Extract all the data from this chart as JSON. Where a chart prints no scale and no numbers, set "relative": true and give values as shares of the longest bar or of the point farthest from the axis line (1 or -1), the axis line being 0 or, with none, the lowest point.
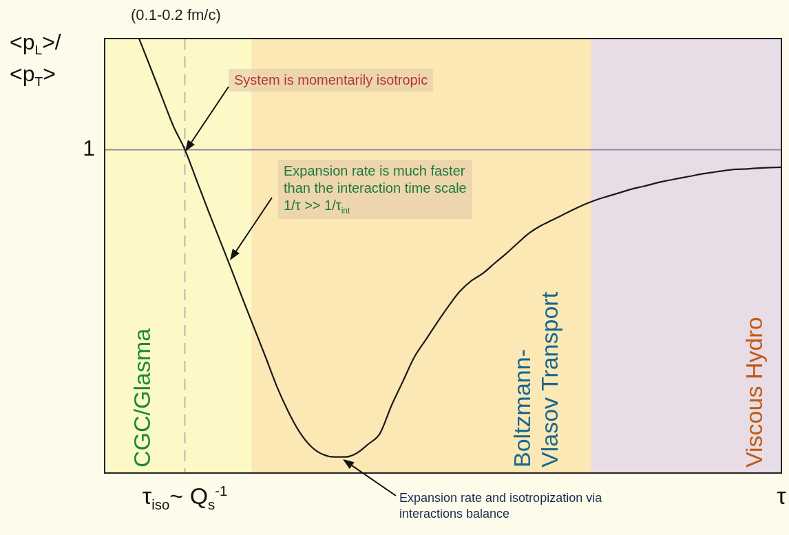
{
  "chart_data": {
    "type": "line",
    "ylabel": "<p$_{L}$>/<p$_{T}$>",
    "relative": true,
    "legend": false,
    "marker": "none",
    "line_style": "solid",
    "categories": [
      null,
      null,
      null,
      null,
      null,
      null,
      null,
      "τ$_{iso}$~ Q$_{s}$$^{-1}$",
      null,
      null,
      null,
      null,
      null,
      null,
      null,
      null,
      null,
      null,
      null,
      null,
      null,
      null,
      null,
      null,
      null,
      null,
      null,
      null,
      null,
      null,
      null,
      null,
      null,
      null,
      null,
      null,
      null,
      null,
      null,
      null,
      null,
      null,
      null,
      null,
      null,
      null,
      null,
      null,
      null,
      null,
      null,
      null,
      null,
      null,
      null,
      null,
      null,
      null,
      null,
      "τ"
    ],
    "series": [
      {
        "color": "#1a1a1a",
        "values": [
          null,
          null,
          null,
          1.0,
          0.933,
          0.865,
          0.798,
          0.744,
          0.675,
          0.606,
          0.539,
          0.472,
          0.403,
          0.336,
          0.269,
          0.2,
          0.142,
          0.094,
          0.061,
          0.043,
          0.037,
          0.037,
          0.046,
          0.067,
          0.091,
          0.155,
          0.211,
          0.267,
          0.307,
          0.347,
          0.385,
          0.419,
          0.443,
          0.46,
          0.483,
          0.505,
          0.529,
          0.552,
          0.569,
          0.582,
          0.595,
          0.608,
          0.62,
          0.63,
          0.638,
          0.646,
          0.654,
          0.66,
          0.667,
          0.673,
          0.678,
          0.683,
          0.688,
          0.692,
          0.696,
          0.699,
          0.7,
          0.702,
          0.703,
          0.704
        ]
      }
    ],
    "ref_lines": [
      {
        "axis": "y",
        "value": 0.744,
        "label": "1",
        "color": "#8c8c9c"
      }
    ],
    "annotations": [
      "(0.1-0.2 fm/c)",
      "System is momentarily isotropic",
      "Expansion rate is much faster\nthan the interaction time scale\n1/τ >> 1/τ$_{int}$",
      "Expansion rate and isotropization via\ninteractions balance",
      "CGC/Glasma",
      "Boltzmann-\nVlasov Transport",
      "Viscous Hydro"
    ]
  }
}
